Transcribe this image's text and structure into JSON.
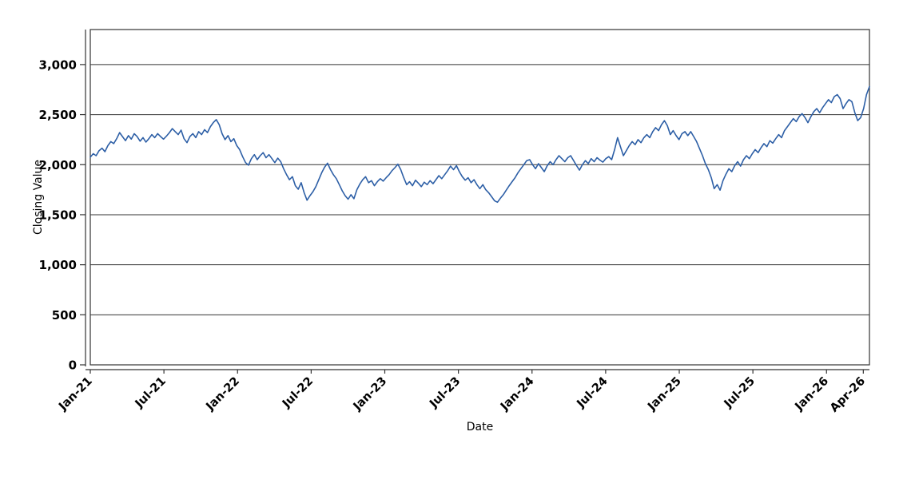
{
  "chart_data": {
    "type": "line",
    "title": "",
    "xlabel": "Date",
    "ylabel": "Closing Value",
    "legend": "none",
    "grid": "horizontal",
    "axis_color": "#333333",
    "x_tick_labels": [
      "Jan-21",
      "Jul-21",
      "Jan-22",
      "Jul-22",
      "Jan-23",
      "Jul-23",
      "Jan-24",
      "Jul-24",
      "Jan-25",
      "Jul-25",
      "Jan-26",
      "Apr-26"
    ],
    "x_tick_months": [
      0,
      6,
      12,
      18,
      24,
      30,
      36,
      42,
      48,
      54,
      60,
      63
    ],
    "x_span_months": 63.5,
    "y_ticks": [
      0,
      500,
      1000,
      1500,
      2000,
      2500,
      3000
    ],
    "y_tick_labels": [
      "0",
      "500",
      "1,000",
      "1,500",
      "2,000",
      "2,500",
      "3,000"
    ],
    "ylim": [
      0,
      3350
    ],
    "series": [
      {
        "name": "Closing Value",
        "color": "#2d5fa6",
        "values": [
          2075,
          2110,
          2090,
          2140,
          2165,
          2130,
          2190,
          2230,
          2210,
          2260,
          2320,
          2280,
          2240,
          2290,
          2255,
          2310,
          2280,
          2235,
          2270,
          2225,
          2260,
          2300,
          2270,
          2310,
          2280,
          2255,
          2285,
          2320,
          2360,
          2330,
          2300,
          2345,
          2260,
          2220,
          2280,
          2310,
          2270,
          2330,
          2300,
          2350,
          2320,
          2380,
          2420,
          2450,
          2400,
          2310,
          2250,
          2290,
          2230,
          2260,
          2190,
          2150,
          2080,
          2020,
          1995,
          2060,
          2100,
          2050,
          2090,
          2120,
          2070,
          2100,
          2060,
          2020,
          2065,
          2030,
          1960,
          1900,
          1850,
          1880,
          1790,
          1755,
          1820,
          1720,
          1645,
          1690,
          1730,
          1780,
          1850,
          1920,
          1975,
          2015,
          1950,
          1900,
          1860,
          1800,
          1740,
          1690,
          1655,
          1700,
          1660,
          1750,
          1805,
          1850,
          1880,
          1820,
          1840,
          1790,
          1830,
          1860,
          1835,
          1870,
          1900,
          1940,
          1970,
          2005,
          1950,
          1870,
          1800,
          1830,
          1790,
          1845,
          1815,
          1780,
          1825,
          1800,
          1840,
          1810,
          1850,
          1890,
          1860,
          1900,
          1940,
          1985,
          1950,
          1990,
          1930,
          1880,
          1845,
          1870,
          1820,
          1850,
          1800,
          1760,
          1800,
          1750,
          1720,
          1680,
          1640,
          1625,
          1665,
          1700,
          1745,
          1790,
          1830,
          1870,
          1920,
          1960,
          2000,
          2040,
          2050,
          2000,
          1960,
          2010,
          1970,
          1930,
          1990,
          2030,
          2000,
          2050,
          2090,
          2060,
          2030,
          2070,
          2090,
          2040,
          1990,
          1945,
          2000,
          2040,
          2010,
          2060,
          2030,
          2070,
          2045,
          2025,
          2060,
          2080,
          2050,
          2150,
          2270,
          2180,
          2090,
          2140,
          2190,
          2230,
          2200,
          2250,
          2220,
          2270,
          2300,
          2270,
          2330,
          2370,
          2340,
          2400,
          2440,
          2390,
          2300,
          2340,
          2290,
          2250,
          2310,
          2330,
          2290,
          2330,
          2280,
          2230,
          2160,
          2090,
          2010,
          1950,
          1870,
          1760,
          1800,
          1745,
          1840,
          1905,
          1960,
          1930,
          1990,
          2030,
          1985,
          2050,
          2090,
          2060,
          2110,
          2150,
          2120,
          2170,
          2210,
          2180,
          2240,
          2215,
          2260,
          2300,
          2270,
          2340,
          2380,
          2420,
          2460,
          2430,
          2480,
          2510,
          2470,
          2420,
          2480,
          2530,
          2560,
          2520,
          2570,
          2610,
          2650,
          2620,
          2680,
          2700,
          2660,
          2560,
          2610,
          2650,
          2630,
          2520,
          2440,
          2470,
          2560,
          2700,
          2780
        ]
      }
    ]
  }
}
